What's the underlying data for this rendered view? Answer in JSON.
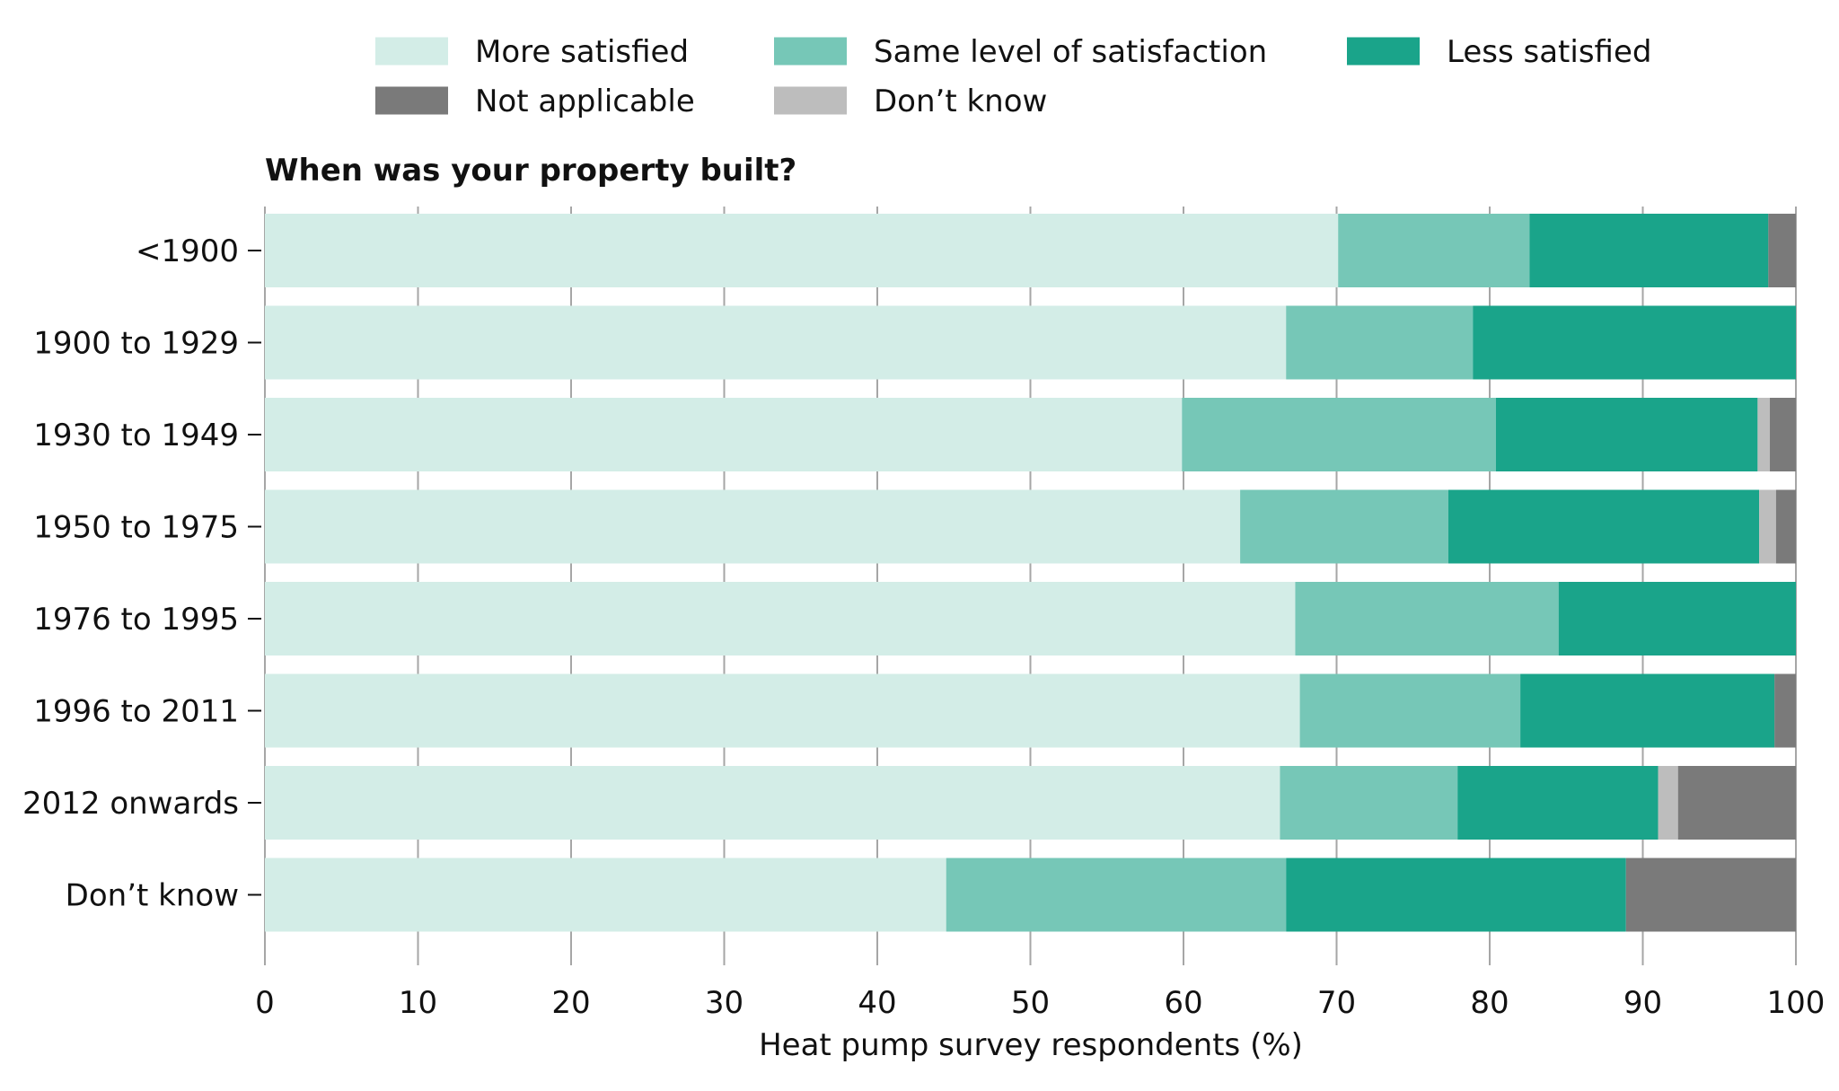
{
  "chart_data": {
    "type": "bar",
    "orientation": "horizontal",
    "stacked": true,
    "subtitle": "When was your property built?",
    "xlabel": "Heat pump survey respondents (%)",
    "ylabel": "",
    "xlim": [
      0,
      100
    ],
    "xticks": [
      0,
      10,
      20,
      30,
      40,
      50,
      60,
      70,
      80,
      90,
      100
    ],
    "grid": "vertical",
    "legend_position": "top",
    "categories": [
      "<1900",
      "1900 to 1929",
      "1930 to 1949",
      "1950 to 1975",
      "1976 to 1995",
      "1996 to 2011",
      "2012 onwards",
      "Don’t know"
    ],
    "series": [
      {
        "name": "More satisfied",
        "color": "#d3ede7",
        "values": [
          70.1,
          66.7,
          59.9,
          63.7,
          67.3,
          67.6,
          66.3,
          44.5
        ]
      },
      {
        "name": "Same level of satisfaction",
        "color": "#76c7b7",
        "values": [
          12.5,
          12.2,
          20.5,
          13.6,
          17.2,
          14.4,
          11.6,
          22.2
        ]
      },
      {
        "name": "Less satisfied",
        "color": "#1aa48a",
        "values": [
          15.6,
          21.1,
          17.1,
          20.3,
          15.5,
          16.6,
          13.1,
          22.2
        ]
      },
      {
        "name": "Don’t know",
        "color": "#bdbdbd",
        "values": [
          0,
          0,
          0.8,
          1.1,
          0,
          0,
          1.3,
          0
        ]
      },
      {
        "name": "Not applicable",
        "color": "#7a7a7a",
        "values": [
          1.8,
          0,
          1.7,
          1.3,
          0,
          1.4,
          7.7,
          11.1
        ]
      }
    ],
    "legend_order": [
      "More satisfied",
      "Same level of satisfaction",
      "Less satisfied",
      "Not applicable",
      "Don’t know"
    ]
  }
}
